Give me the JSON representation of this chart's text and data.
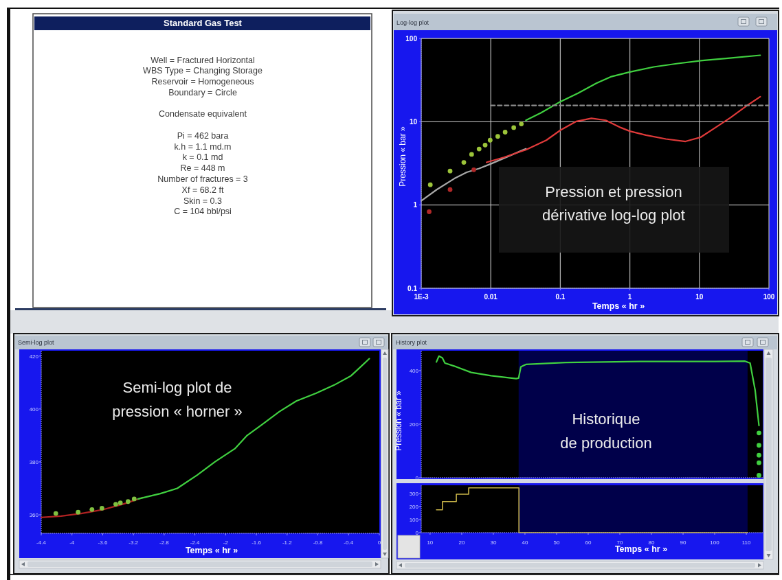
{
  "chart_data": [
    {
      "type": "other",
      "title": "Standard Gas Test",
      "annotations": [
        "Well = Fractured Horizontal",
        "WBS Type = Changing Storage",
        "Reservoir = Homogeneous",
        "Boundary = Circle",
        "Condensate equivalent",
        "Pi = 462 bara",
        "k.h = 1.1 md.m",
        "k = 0.1 md",
        "Re = 448 m",
        "Number of fractures = 3",
        "Xf = 68.2 ft",
        "Skin = 0.3",
        "C = 104 bbl/psi"
      ]
    },
    {
      "type": "line",
      "title": "Log-log plot",
      "xlabel": "Temps « hr »",
      "ylabel": "Pression « bar »",
      "log": "xy",
      "xlim": [
        0.001,
        100
      ],
      "ylim": [
        0.1,
        100
      ],
      "xticks": [
        {
          "value": 0.001,
          "label": "1E-3"
        },
        0.01,
        0.1,
        1,
        10,
        100
      ],
      "yticks": [
        0.1,
        1,
        10,
        100
      ],
      "grid": true,
      "annotations": [
        "Pression et pression dérivative log-log plot"
      ],
      "series": [
        {
          "type": "scatter",
          "marker": "circle",
          "color": "#9cc43a",
          "x": [
            0.00135,
            0.0026,
            0.0041,
            0.0053,
            0.0068,
            0.0083,
            0.0098,
            0.0126,
            0.0161,
            0.0214,
            0.0275
          ],
          "values": [
            1.75,
            2.56,
            3.25,
            4.05,
            4.7,
            5.25,
            6.0,
            6.66,
            7.5,
            8.5,
            9.4
          ]
        },
        {
          "type": "line",
          "color": "#40d040",
          "x": [
            0.032,
            0.053,
            0.1,
            0.18,
            0.33,
            0.53,
            1,
            2.2,
            4.9,
            10.4,
            25.7,
            75
          ],
          "values": [
            10.4,
            12.8,
            17.4,
            22,
            29,
            34.6,
            39.6,
            45.5,
            50,
            54,
            57.8,
            62.8
          ]
        },
        {
          "type": "line",
          "color": "#a8a8a8",
          "x": [
            0.001,
            0.00167,
            0.003,
            0.0045,
            0.0068,
            0.0102,
            0.018,
            0.032
          ],
          "values": [
            1.12,
            1.53,
            2.08,
            2.47,
            2.74,
            3.14,
            3.85,
            4.74
          ]
        },
        {
          "type": "line",
          "color": "#e03a3a",
          "x": [
            0.0087,
            0.0154,
            0.032,
            0.063,
            0.1,
            0.17,
            0.28,
            0.45,
            0.74,
            1,
            1.7,
            3.3,
            6.3,
            10.4,
            17,
            28,
            46,
            75
          ],
          "values": [
            3.25,
            3.73,
            4.6,
            6.0,
            7.9,
            10.1,
            11.0,
            10.4,
            8.5,
            7.7,
            6.9,
            6.2,
            5.8,
            6.5,
            8.5,
            11.2,
            15.2,
            20
          ]
        },
        {
          "type": "scatter",
          "marker": "circle",
          "color": "#b02828",
          "x": [
            0.0013,
            0.0026,
            0.0057
          ],
          "values": [
            0.83,
            1.53,
            2.65
          ]
        },
        {
          "type": "line",
          "color": "#8c8c8c",
          "line_style": "dashed",
          "x": [
            0.01,
            100
          ],
          "values": [
            15.7,
            15.7
          ]
        }
      ]
    },
    {
      "type": "line",
      "title": "Semi-log plot",
      "xlabel": "Temps « hr »",
      "xlim": [
        -4.4,
        0
      ],
      "ylim": [
        353,
        422
      ],
      "xticks": [
        -4.4,
        -4,
        -3.6,
        -3.2,
        -2.8,
        -2.4,
        -2,
        -1.6,
        -1.2,
        -0.8,
        -0.4,
        0
      ],
      "yticks": [
        360,
        380,
        400,
        420
      ],
      "annotations": [
        "Semi-log plot de pression « horner »"
      ],
      "series": [
        {
          "type": "line",
          "color": "#b02222",
          "x": [
            -4.4,
            -4.14,
            -3.88,
            -3.59,
            -3.34,
            -3.08
          ],
          "values": [
            359,
            359.5,
            360.5,
            362,
            364,
            366.5
          ]
        },
        {
          "type": "scatter",
          "marker": "circle",
          "color": "#80c040",
          "x": [
            -4.21,
            -3.92,
            -3.74,
            -3.61,
            -3.43,
            -3.37,
            -3.27,
            -3.19
          ],
          "values": [
            360.5,
            361,
            362,
            362.5,
            364,
            364.5,
            365,
            366
          ]
        },
        {
          "type": "line",
          "color": "#40d040",
          "x": [
            -3.14,
            -2.85,
            -2.63,
            -2.37,
            -2.14,
            -1.88,
            -1.72,
            -1.53,
            -1.3,
            -1.08,
            -0.82,
            -0.59,
            -0.37,
            -0.24,
            -0.13
          ],
          "values": [
            366,
            368,
            370,
            375,
            380,
            385,
            390,
            394,
            399,
            403,
            406,
            409,
            412.5,
            416,
            419
          ]
        }
      ]
    },
    {
      "type": "line",
      "title": "History plot",
      "ylabel": "Pression « bar »",
      "xlim": [
        7.2,
        115.2
      ],
      "ylim": [
        0,
        474
      ],
      "yticks": [
        0,
        200,
        400
      ],
      "tick_labels": "y",
      "bands": [
        {
          "axis": "x",
          "from": 38,
          "to": 110.4,
          "color": "#00004a"
        }
      ],
      "annotations": [
        "Historique de production"
      ],
      "series": [
        {
          "type": "line",
          "color": "#40d040",
          "x": [
            12,
            12.8,
            13.9,
            14.7,
            18.3,
            23,
            29.3,
            37.2,
            38,
            38.7,
            40.3,
            52.9,
            76.5,
            100.2,
            109.6,
            111.2,
            112.8,
            114
          ],
          "values": [
            432,
            454,
            447,
            428,
            414,
            393,
            381,
            370,
            372,
            414,
            423,
            430,
            434,
            434,
            435,
            428,
            326,
            195
          ]
        },
        {
          "type": "scatter",
          "marker": "circle",
          "color": "#40d040",
          "x": [
            114,
            114,
            114,
            114,
            114
          ],
          "values": [
            167,
            121,
            84,
            56,
            9
          ]
        }
      ]
    },
    {
      "type": "step",
      "xlabel": "Temps « hr »",
      "xlim": [
        7.2,
        115.2
      ],
      "ylim": [
        0,
        363
      ],
      "xticks": [
        10,
        20,
        30,
        40,
        50,
        60,
        70,
        80,
        90,
        100,
        110
      ],
      "yticks": [
        0,
        100,
        200,
        300
      ],
      "bands": [
        {
          "axis": "x",
          "from": 38,
          "to": 110.4,
          "color": "#00004a"
        }
      ],
      "x": [
        12,
        13.9,
        18.3,
        22.2,
        38.1,
        110.4
      ],
      "values": [
        175,
        238,
        295,
        343,
        0,
        0
      ],
      "color": "#c8b448"
    }
  ]
}
